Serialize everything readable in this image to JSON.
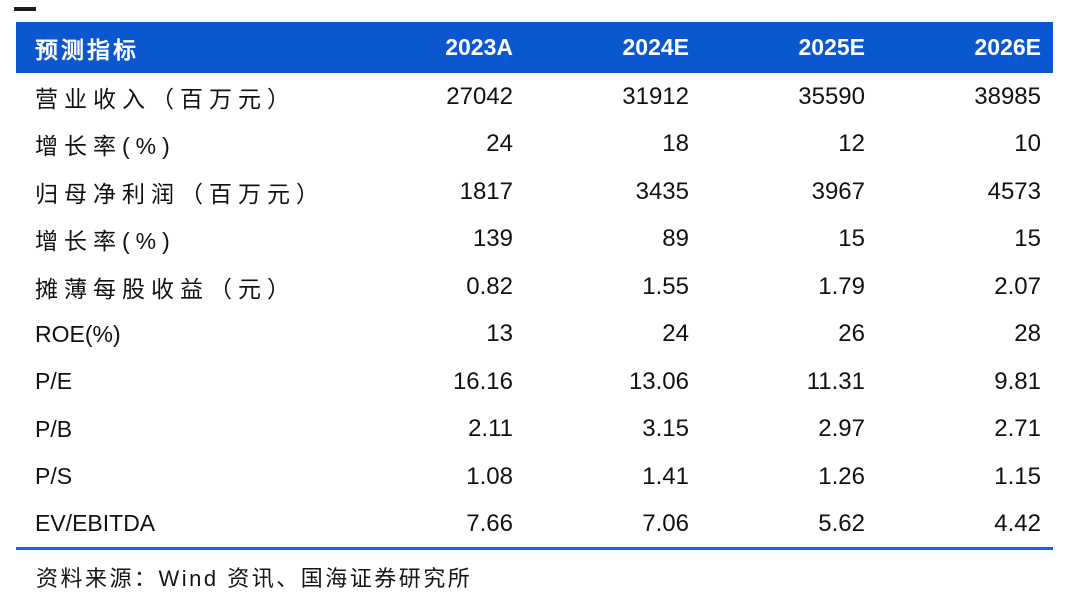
{
  "colors": {
    "header_bg": "#0b57d0",
    "header_text": "#ffffff",
    "bottom_rule_blue": "#1565d8",
    "body_text": "#111111"
  },
  "table": {
    "columns": [
      "预测指标",
      "2023A",
      "2024E",
      "2025E",
      "2026E"
    ],
    "rows": [
      {
        "label": "营业收入（百万元）",
        "values": [
          "27042",
          "31912",
          "35590",
          "38985"
        ]
      },
      {
        "label": "增长率(%)",
        "values": [
          "24",
          "18",
          "12",
          "10"
        ]
      },
      {
        "label": "归母净利润（百万元）",
        "values": [
          "1817",
          "3435",
          "3967",
          "4573"
        ]
      },
      {
        "label": "增长率(%)",
        "values": [
          "139",
          "89",
          "15",
          "15"
        ]
      },
      {
        "label": "摊薄每股收益（元）",
        "values": [
          "0.82",
          "1.55",
          "1.79",
          "2.07"
        ]
      },
      {
        "label": "ROE(%)",
        "values": [
          "13",
          "24",
          "26",
          "28"
        ]
      },
      {
        "label": "P/E",
        "values": [
          "16.16",
          "13.06",
          "11.31",
          "9.81"
        ]
      },
      {
        "label": "P/B",
        "values": [
          "2.11",
          "3.15",
          "2.97",
          "2.71"
        ]
      },
      {
        "label": "P/S",
        "values": [
          "1.08",
          "1.41",
          "1.26",
          "1.15"
        ]
      },
      {
        "label": "EV/EBITDA",
        "values": [
          "7.66",
          "7.06",
          "5.62",
          "4.42"
        ]
      }
    ]
  },
  "footer": {
    "source_text": "资料来源：Wind 资讯、国海证券研究所"
  }
}
